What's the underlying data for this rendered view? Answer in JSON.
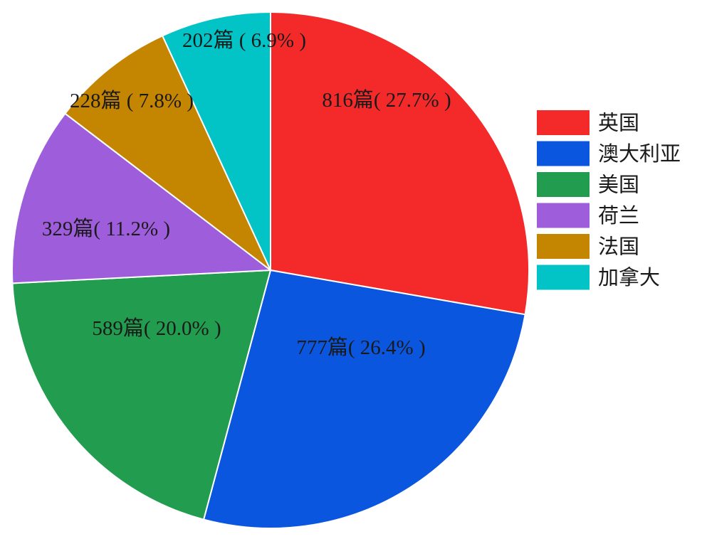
{
  "chart_data": {
    "type": "pie",
    "title": "",
    "slices": [
      {
        "name": "英国",
        "value": 816,
        "percent": 27.7,
        "label": "816篇( 27.7% )",
        "color": "#f42a2a"
      },
      {
        "name": "澳大利亚",
        "value": 777,
        "percent": 26.4,
        "label": "777篇( 26.4% )",
        "color": "#0b56df"
      },
      {
        "name": "美国",
        "value": 589,
        "percent": 20.0,
        "label": "589篇( 20.0% )",
        "color": "#229d4f"
      },
      {
        "name": "荷兰",
        "value": 329,
        "percent": 11.2,
        "label": "329篇( 11.2% )",
        "color": "#9e5ddb"
      },
      {
        "name": "法国",
        "value": 228,
        "percent": 7.8,
        "label": "228篇 ( 7.8% )",
        "color": "#c48500"
      },
      {
        "name": "加拿大",
        "value": 202,
        "percent": 6.9,
        "label": "202篇 ( 6.9% )",
        "color": "#02c4c6"
      }
    ],
    "start_angle": "12 o'clock",
    "direction": "clockwise",
    "legend": {
      "position": "right",
      "entries": [
        "英国",
        "澳大利亚",
        "美国",
        "荷兰",
        "法国",
        "加拿大"
      ]
    }
  }
}
